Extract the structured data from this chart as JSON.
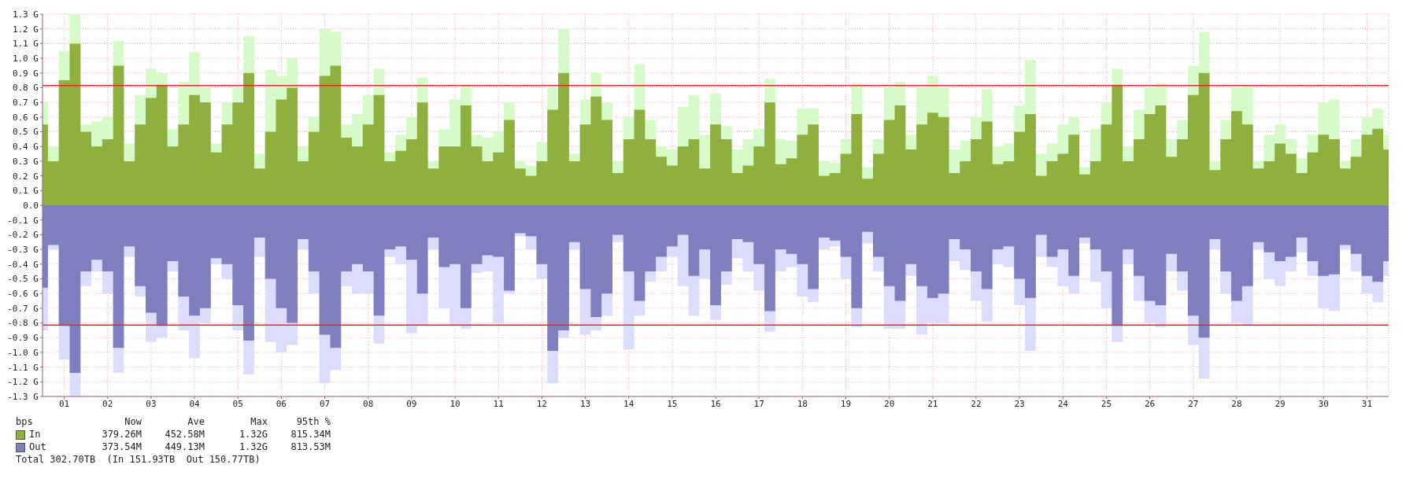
{
  "chart_data": {
    "type": "area",
    "legend": "bottom left",
    "grid": true,
    "x": [
      0,
      0.25,
      0.5,
      0.75,
      1,
      1.25,
      1.5,
      1.75,
      2,
      2.25,
      2.5,
      2.75,
      3,
      3.25,
      3.5,
      3.75,
      4,
      4.25,
      4.5,
      4.75,
      5,
      5.25,
      5.5,
      5.75,
      6,
      6.25,
      6.5,
      6.75,
      7,
      7.25,
      7.5,
      7.75,
      8,
      8.25,
      8.5,
      8.75,
      9,
      9.25,
      9.5,
      9.75,
      10,
      10.25,
      10.5,
      10.75,
      11,
      11.25,
      11.5,
      11.75,
      12,
      12.25,
      12.5,
      12.75,
      13,
      13.25,
      13.5,
      13.75,
      14,
      14.25,
      14.5,
      14.75,
      15,
      15.25,
      15.5,
      15.75,
      16,
      16.25,
      16.5,
      16.75,
      17,
      17.25,
      17.5,
      17.75,
      18,
      18.25,
      18.5,
      18.75,
      19,
      19.25,
      19.5,
      19.75,
      20,
      20.25,
      20.5,
      20.75,
      21,
      21.25,
      21.5,
      21.75,
      22,
      22.25,
      22.5,
      22.75,
      23,
      23.25,
      23.5,
      23.75,
      24,
      24.25,
      24.5,
      24.75,
      25,
      25.25,
      25.5,
      25.75,
      26,
      26.25,
      26.5,
      26.75,
      27,
      27.25,
      27.5,
      27.75,
      28,
      28.25,
      28.5,
      28.75,
      29,
      29.25,
      29.5,
      29.75,
      30,
      30.25,
      30.5,
      30.75,
      31
    ],
    "xlim": [
      0,
      31
    ],
    "xticks": [
      {
        "value": 0.5,
        "label": "01"
      },
      {
        "value": 1.5,
        "label": "02"
      },
      {
        "value": 2.5,
        "label": "03"
      },
      {
        "value": 3.5,
        "label": "04"
      },
      {
        "value": 4.5,
        "label": "05"
      },
      {
        "value": 5.5,
        "label": "06"
      },
      {
        "value": 6.5,
        "label": "07"
      },
      {
        "value": 7.5,
        "label": "08"
      },
      {
        "value": 8.5,
        "label": "09"
      },
      {
        "value": 9.5,
        "label": "10"
      },
      {
        "value": 10.5,
        "label": "11"
      },
      {
        "value": 11.5,
        "label": "12"
      },
      {
        "value": 12.5,
        "label": "13"
      },
      {
        "value": 13.5,
        "label": "14"
      },
      {
        "value": 14.5,
        "label": "15"
      },
      {
        "value": 15.5,
        "label": "16"
      },
      {
        "value": 16.5,
        "label": "17"
      },
      {
        "value": 17.5,
        "label": "18"
      },
      {
        "value": 18.5,
        "label": "19"
      },
      {
        "value": 19.5,
        "label": "20"
      },
      {
        "value": 20.5,
        "label": "21"
      },
      {
        "value": 21.5,
        "label": "22"
      },
      {
        "value": 22.5,
        "label": "23"
      },
      {
        "value": 23.5,
        "label": "24"
      },
      {
        "value": 24.5,
        "label": "25"
      },
      {
        "value": 25.5,
        "label": "26"
      },
      {
        "value": 26.5,
        "label": "27"
      },
      {
        "value": 27.5,
        "label": "28"
      },
      {
        "value": 28.5,
        "label": "29"
      },
      {
        "value": 29.5,
        "label": "30"
      },
      {
        "value": 30.5,
        "label": "31"
      }
    ],
    "ylim": [
      -1.3,
      1.3
    ],
    "yticks": [
      {
        "value": -1.3,
        "label": "-1.3 G"
      },
      {
        "value": -1.2,
        "label": "-1.2 G"
      },
      {
        "value": -1.1,
        "label": "-1.1 G"
      },
      {
        "value": -1.0,
        "label": "-1.0 G"
      },
      {
        "value": -0.9,
        "label": "-0.9 G"
      },
      {
        "value": -0.8,
        "label": "-0.8 G"
      },
      {
        "value": -0.7,
        "label": "-0.7 G"
      },
      {
        "value": -0.6,
        "label": "-0.6 G"
      },
      {
        "value": -0.5,
        "label": "-0.5 G"
      },
      {
        "value": -0.4,
        "label": "-0.4 G"
      },
      {
        "value": -0.3,
        "label": "-0.3 G"
      },
      {
        "value": -0.2,
        "label": "-0.2 G"
      },
      {
        "value": -0.1,
        "label": "-0.1 G"
      },
      {
        "value": 0,
        "label": "0.0"
      },
      {
        "value": 0.1,
        "label": "0.1 G"
      },
      {
        "value": 0.2,
        "label": "0.2 G"
      },
      {
        "value": 0.3,
        "label": "0.3 G"
      },
      {
        "value": 0.4,
        "label": "0.4 G"
      },
      {
        "value": 0.5,
        "label": "0.5 G"
      },
      {
        "value": 0.6,
        "label": "0.6 G"
      },
      {
        "value": 0.7,
        "label": "0.7 G"
      },
      {
        "value": 0.8,
        "label": "0.8 G"
      },
      {
        "value": 0.9,
        "label": "0.9 G"
      },
      {
        "value": 1.0,
        "label": "1.0 G"
      },
      {
        "value": 1.1,
        "label": "1.1 G"
      },
      {
        "value": 1.2,
        "label": "1.2 G"
      },
      {
        "value": 1.3,
        "label": "1.3 G"
      }
    ],
    "series": [
      {
        "color": "#d6fbc8",
        "values": [
          0.7,
          0.4,
          1.05,
          1.3,
          0.55,
          0.57,
          0.6,
          1.12,
          0.42,
          0.75,
          0.93,
          0.9,
          0.52,
          0.84,
          1.04,
          0.8,
          0.42,
          0.7,
          0.8,
          1.15,
          0.35,
          0.92,
          0.88,
          1.0,
          0.4,
          0.6,
          1.2,
          1.18,
          0.55,
          0.62,
          0.75,
          0.93,
          0.36,
          0.48,
          0.6,
          0.87,
          0.3,
          0.52,
          0.72,
          0.82,
          0.48,
          0.46,
          0.5,
          0.7,
          0.3,
          0.27,
          0.43,
          0.8,
          1.2,
          0.35,
          0.72,
          0.9,
          0.7,
          0.3,
          0.6,
          0.96,
          0.58,
          0.4,
          0.38,
          0.67,
          0.75,
          0.48,
          0.76,
          0.54,
          0.38,
          0.45,
          0.52,
          0.86,
          0.45,
          0.44,
          0.66,
          0.66,
          0.3,
          0.29,
          0.45,
          0.83,
          0.26,
          0.45,
          0.8,
          0.84,
          0.48,
          0.8,
          0.88,
          0.8,
          0.38,
          0.44,
          0.6,
          0.79,
          0.4,
          0.42,
          0.68,
          0.99,
          0.35,
          0.42,
          0.55,
          0.6,
          0.26,
          0.52,
          0.7,
          0.93,
          0.4,
          0.65,
          0.8,
          0.83,
          0.45,
          0.58,
          0.95,
          1.18,
          0.3,
          0.58,
          0.8,
          0.81,
          0.3,
          0.48,
          0.55,
          0.45,
          0.32,
          0.48,
          0.7,
          0.72,
          0.3,
          0.45,
          0.6,
          0.66,
          0.48
        ]
      },
      {
        "name": "In",
        "color": "#8fb03f",
        "values": [
          0.55,
          0.3,
          0.85,
          1.1,
          0.5,
          0.4,
          0.45,
          0.95,
          0.3,
          0.55,
          0.73,
          0.82,
          0.4,
          0.55,
          0.75,
          0.7,
          0.36,
          0.55,
          0.7,
          0.9,
          0.25,
          0.5,
          0.72,
          0.8,
          0.3,
          0.5,
          0.88,
          0.95,
          0.46,
          0.4,
          0.55,
          0.75,
          0.3,
          0.37,
          0.45,
          0.7,
          0.25,
          0.4,
          0.4,
          0.68,
          0.4,
          0.3,
          0.36,
          0.58,
          0.25,
          0.2,
          0.3,
          0.65,
          0.9,
          0.3,
          0.55,
          0.74,
          0.58,
          0.22,
          0.45,
          0.65,
          0.45,
          0.33,
          0.27,
          0.4,
          0.45,
          0.25,
          0.55,
          0.45,
          0.22,
          0.27,
          0.4,
          0.7,
          0.28,
          0.32,
          0.48,
          0.55,
          0.2,
          0.22,
          0.35,
          0.62,
          0.18,
          0.35,
          0.58,
          0.68,
          0.38,
          0.55,
          0.63,
          0.6,
          0.22,
          0.3,
          0.45,
          0.57,
          0.28,
          0.3,
          0.5,
          0.62,
          0.2,
          0.3,
          0.35,
          0.48,
          0.21,
          0.3,
          0.55,
          0.82,
          0.3,
          0.45,
          0.62,
          0.68,
          0.33,
          0.45,
          0.75,
          0.9,
          0.24,
          0.45,
          0.64,
          0.55,
          0.25,
          0.3,
          0.42,
          0.35,
          0.22,
          0.36,
          0.48,
          0.45,
          0.25,
          0.33,
          0.48,
          0.52,
          0.38
        ]
      },
      {
        "color": "#dcdcfc",
        "values": [
          -0.85,
          -0.3,
          -1.05,
          -1.3,
          -0.55,
          -0.45,
          -0.6,
          -1.14,
          -0.35,
          -0.62,
          -0.93,
          -0.9,
          -0.45,
          -0.85,
          -1.04,
          -0.8,
          -0.4,
          -0.5,
          -0.85,
          -1.15,
          -0.35,
          -0.93,
          -1.0,
          -0.95,
          -0.3,
          -0.6,
          -1.21,
          -1.12,
          -0.55,
          -0.6,
          -0.6,
          -0.94,
          -0.35,
          -0.4,
          -0.87,
          -0.82,
          -0.3,
          -0.7,
          -0.82,
          -0.84,
          -0.46,
          -0.45,
          -0.8,
          -0.6,
          -0.21,
          -0.3,
          -0.5,
          -1.21,
          -0.9,
          -0.3,
          -0.88,
          -0.85,
          -0.75,
          -0.25,
          -0.98,
          -0.75,
          -0.52,
          -0.45,
          -0.35,
          -0.55,
          -0.75,
          -0.5,
          -0.78,
          -0.54,
          -0.36,
          -0.45,
          -0.58,
          -0.86,
          -0.45,
          -0.42,
          -0.62,
          -0.66,
          -0.3,
          -0.28,
          -0.5,
          -0.83,
          -0.26,
          -0.45,
          -0.84,
          -0.84,
          -0.48,
          -0.88,
          -0.8,
          -0.8,
          -0.38,
          -0.44,
          -0.65,
          -0.79,
          -0.4,
          -0.42,
          -0.68,
          -0.99,
          -0.35,
          -0.42,
          -0.55,
          -0.6,
          -0.26,
          -0.52,
          -0.7,
          -0.93,
          -0.4,
          -0.65,
          -0.8,
          -0.83,
          -0.45,
          -0.58,
          -0.95,
          -1.18,
          -0.3,
          -0.6,
          -0.8,
          -0.82,
          -0.3,
          -0.5,
          -0.55,
          -0.45,
          -0.32,
          -0.48,
          -0.7,
          -0.72,
          -0.3,
          -0.45,
          -0.6,
          -0.66,
          -0.48
        ]
      },
      {
        "name": "Out",
        "color": "#7f7fc0",
        "values": [
          -0.56,
          -0.27,
          -0.82,
          -1.14,
          -0.45,
          -0.37,
          -0.45,
          -0.97,
          -0.28,
          -0.55,
          -0.73,
          -0.82,
          -0.38,
          -0.62,
          -0.75,
          -0.7,
          -0.36,
          -0.4,
          -0.68,
          -0.92,
          -0.22,
          -0.5,
          -0.7,
          -0.8,
          -0.23,
          -0.45,
          -0.88,
          -0.97,
          -0.45,
          -0.4,
          -0.45,
          -0.75,
          -0.3,
          -0.28,
          -0.37,
          -0.6,
          -0.22,
          -0.42,
          -0.4,
          -0.7,
          -0.4,
          -0.34,
          -0.35,
          -0.58,
          -0.19,
          -0.21,
          -0.4,
          -0.99,
          -0.85,
          -0.25,
          -0.57,
          -0.76,
          -0.6,
          -0.2,
          -0.45,
          -0.65,
          -0.45,
          -0.35,
          -0.28,
          -0.2,
          -0.48,
          -0.3,
          -0.68,
          -0.45,
          -0.23,
          -0.25,
          -0.4,
          -0.72,
          -0.3,
          -0.33,
          -0.4,
          -0.57,
          -0.22,
          -0.24,
          -0.35,
          -0.7,
          -0.18,
          -0.35,
          -0.55,
          -0.65,
          -0.4,
          -0.55,
          -0.63,
          -0.6,
          -0.23,
          -0.3,
          -0.45,
          -0.57,
          -0.3,
          -0.28,
          -0.5,
          -0.63,
          -0.2,
          -0.35,
          -0.3,
          -0.48,
          -0.22,
          -0.3,
          -0.45,
          -0.82,
          -0.3,
          -0.48,
          -0.65,
          -0.68,
          -0.33,
          -0.45,
          -0.75,
          -0.9,
          -0.23,
          -0.45,
          -0.65,
          -0.55,
          -0.25,
          -0.32,
          -0.38,
          -0.35,
          -0.22,
          -0.38,
          -0.48,
          -0.47,
          -0.27,
          -0.33,
          -0.48,
          -0.52,
          -0.38
        ]
      }
    ],
    "ref_lines": [
      {
        "axis": "y",
        "value": 0.815,
        "color": "#cc3333"
      },
      {
        "axis": "y",
        "value": -0.815,
        "color": "#cc3333"
      }
    ],
    "annotations": [
      "bps",
      "Now",
      "Ave",
      "Max",
      "95th %",
      "379.26M",
      "452.58M",
      "1.32G",
      "815.34M",
      "373.54M",
      "449.13M",
      "1.32G",
      "813.53M",
      "Total 302.70TB  (In 151.93TB  Out 150.77TB)"
    ]
  }
}
